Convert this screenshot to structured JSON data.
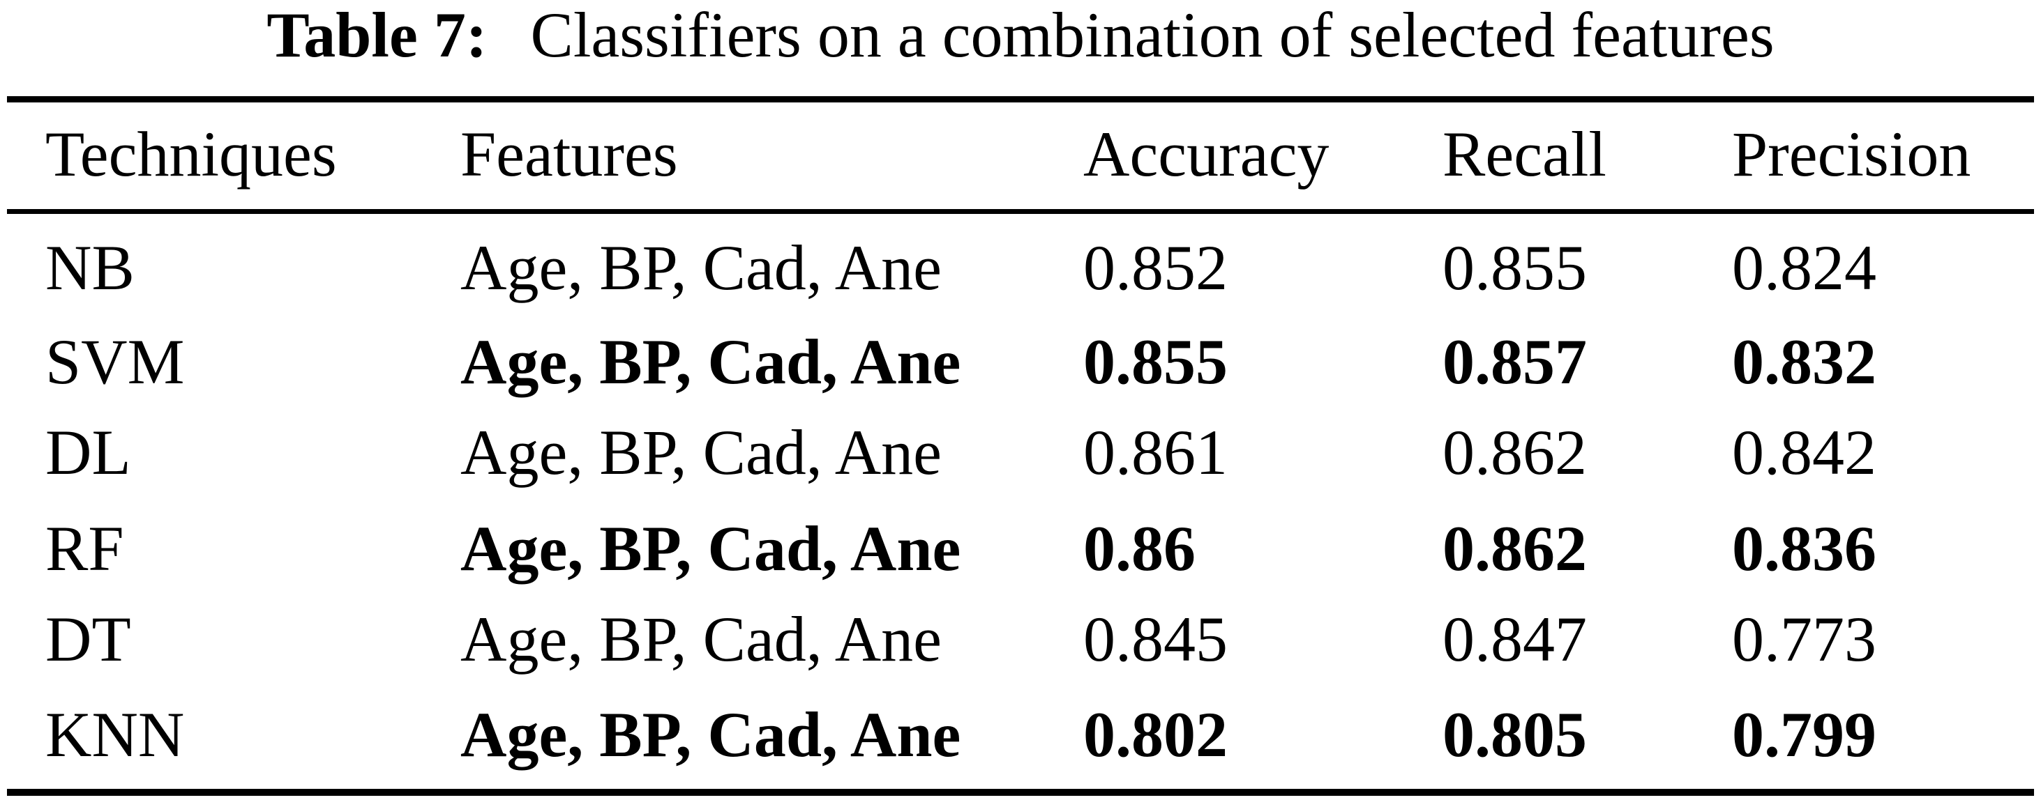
{
  "caption": {
    "label": "Table 7:",
    "text": "Classifiers on a combination of selected features"
  },
  "table": {
    "columns": [
      "Techniques",
      "Features",
      "Accuracy",
      "Recall",
      "Precision"
    ],
    "rows": [
      {
        "technique": "NB",
        "features": "Age, BP, Cad, Ane",
        "accuracy": "0.852",
        "recall": "0.855",
        "precision": "0.824",
        "bold": false
      },
      {
        "technique": "SVM",
        "features": "Age, BP, Cad, Ane",
        "accuracy": "0.855",
        "recall": "0.857",
        "precision": "0.832",
        "bold": true
      },
      {
        "technique": "DL",
        "features": "Age, BP, Cad, Ane",
        "accuracy": "0.861",
        "recall": "0.862",
        "precision": "0.842",
        "bold": false
      },
      {
        "technique": "RF",
        "features": "Age, BP, Cad, Ane",
        "accuracy": "0.86",
        "recall": "0.862",
        "precision": "0.836",
        "bold": true
      },
      {
        "technique": "DT",
        "features": "Age, BP, Cad, Ane",
        "accuracy": "0.845",
        "recall": "0.847",
        "precision": "0.773",
        "bold": false
      },
      {
        "technique": "KNN",
        "features": "Age, BP, Cad, Ane",
        "accuracy": "0.802",
        "recall": "0.805",
        "precision": "0.799",
        "bold": true
      }
    ]
  },
  "colors": {
    "background": "#ffffff",
    "text": "#000000",
    "rule": "#000000"
  }
}
